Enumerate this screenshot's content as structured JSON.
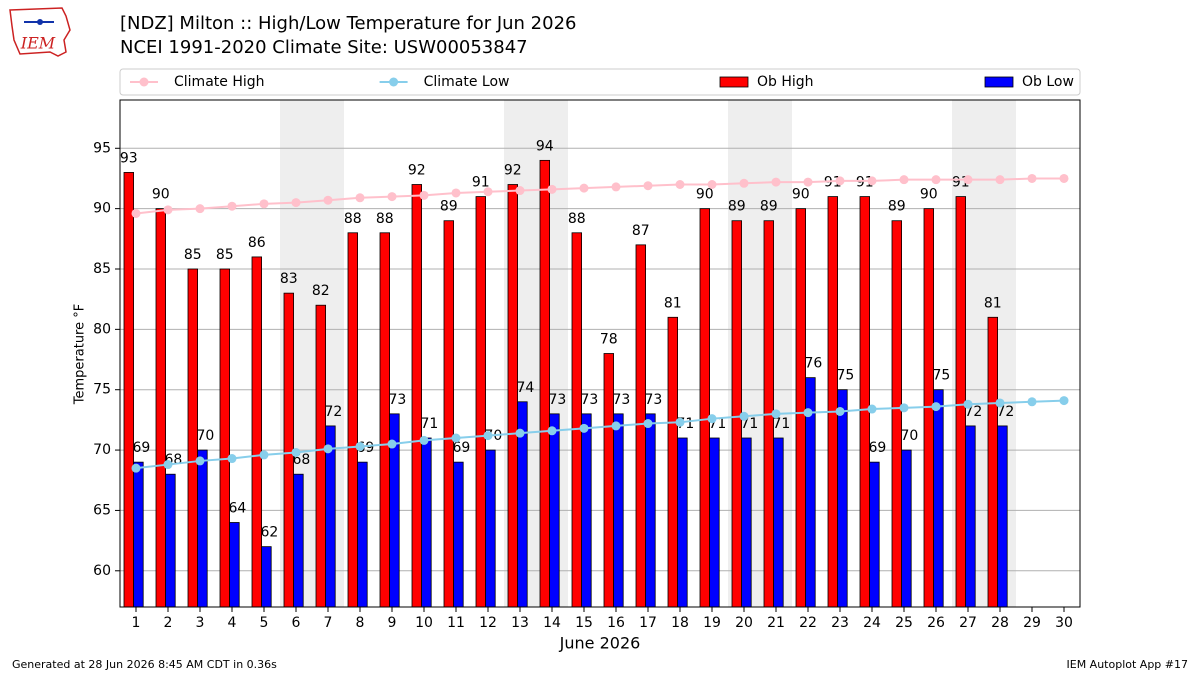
{
  "logo_text": "IEM",
  "footer_left": "Generated at 28 Jun 2026 8:45 AM CDT in 0.36s",
  "footer_right": "IEM Autoplot App #17",
  "chart_data": {
    "type": "bar",
    "title": "[NDZ] Milton :: High/Low Temperature for Jun 2026",
    "subtitle": "NCEI 1991-2020 Climate Site: USW00053847",
    "x_label": "June 2026",
    "y_label": "Temperature °F",
    "x": [
      1,
      2,
      3,
      4,
      5,
      6,
      7,
      8,
      9,
      10,
      11,
      12,
      13,
      14,
      15,
      16,
      17,
      18,
      19,
      20,
      21,
      22,
      23,
      24,
      25,
      26,
      27,
      28,
      29,
      30
    ],
    "xlim": [
      0.5,
      30.5
    ],
    "xticks": [
      1,
      2,
      3,
      4,
      5,
      6,
      7,
      8,
      9,
      10,
      11,
      12,
      13,
      14,
      15,
      16,
      17,
      18,
      19,
      20,
      21,
      22,
      23,
      24,
      25,
      26,
      27,
      28,
      29,
      30
    ],
    "ylim": [
      57,
      99
    ],
    "yticks": [
      60,
      65,
      70,
      75,
      80,
      85,
      90,
      95
    ],
    "grid": true,
    "legend": "top",
    "shaded_days": [
      6,
      7,
      13,
      14,
      20,
      21,
      27,
      28
    ],
    "shade_color": "#eeeeee",
    "series": [
      {
        "name": "Climate High",
        "kind": "line",
        "color": "#ffc0cb",
        "values": [
          89.6,
          89.9,
          90.0,
          90.2,
          90.4,
          90.5,
          90.7,
          90.9,
          91.0,
          91.1,
          91.3,
          91.4,
          91.5,
          91.6,
          91.7,
          91.8,
          91.9,
          92.0,
          92.0,
          92.1,
          92.2,
          92.2,
          92.3,
          92.3,
          92.4,
          92.4,
          92.4,
          92.4,
          92.5,
          92.5
        ]
      },
      {
        "name": "Climate Low",
        "kind": "line",
        "color": "#87ceeb",
        "values": [
          68.5,
          68.8,
          69.1,
          69.3,
          69.6,
          69.8,
          70.1,
          70.3,
          70.5,
          70.8,
          71.0,
          71.2,
          71.4,
          71.6,
          71.8,
          72.0,
          72.2,
          72.3,
          72.6,
          72.8,
          73.0,
          73.1,
          73.2,
          73.4,
          73.5,
          73.6,
          73.8,
          73.9,
          74.0,
          74.1
        ]
      },
      {
        "name": "Ob High",
        "kind": "bar",
        "color": "#ff0000",
        "values": [
          93,
          90,
          85,
          85,
          86,
          83,
          82,
          88,
          88,
          92,
          89,
          91,
          92,
          94,
          88,
          78,
          87,
          81,
          90,
          89,
          89,
          90,
          91,
          91,
          89,
          90,
          91,
          81,
          null,
          null
        ]
      },
      {
        "name": "Ob Low",
        "kind": "bar",
        "color": "#0000ff",
        "values": [
          69,
          68,
          70,
          64,
          62,
          68,
          72,
          69,
          73,
          71,
          69,
          70,
          74,
          73,
          73,
          73,
          73,
          71,
          71,
          71,
          71,
          76,
          75,
          69,
          70,
          75,
          72,
          72,
          null,
          null
        ]
      }
    ]
  }
}
